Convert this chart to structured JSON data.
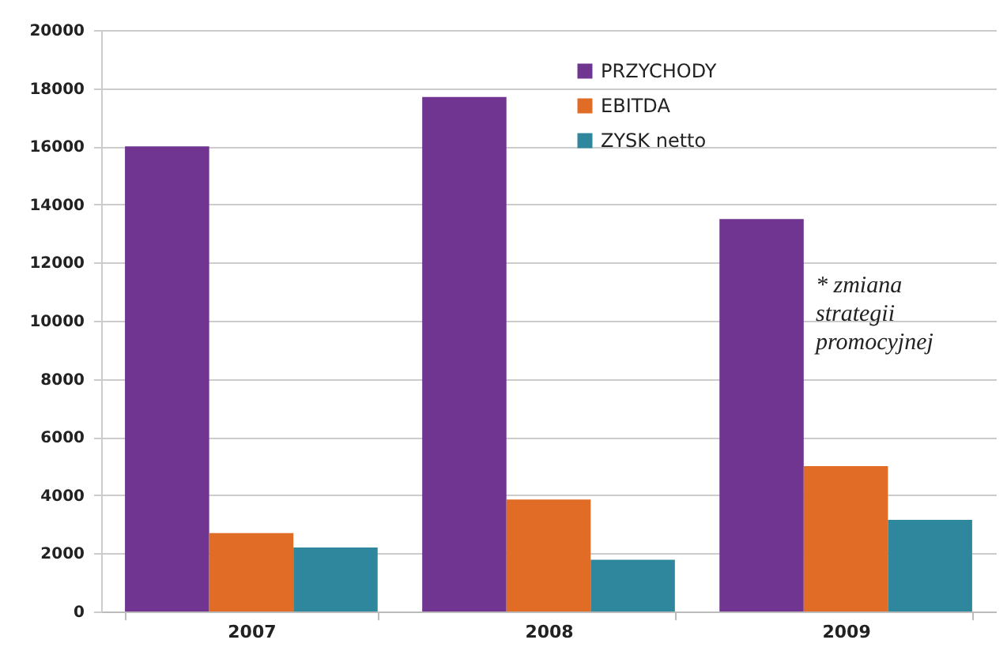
{
  "chart_data": {
    "type": "bar",
    "categories": [
      "2007",
      "2008",
      "2009"
    ],
    "series": [
      {
        "name": "PRZYCHODY",
        "color": "#6f3590",
        "values": [
          16000,
          17700,
          13500
        ]
      },
      {
        "name": "EBITDA",
        "color": "#e06c25",
        "values": [
          2700,
          3850,
          5000
        ]
      },
      {
        "name": "ZYSK netto",
        "color": "#2e879c",
        "values": [
          2200,
          1780,
          3150
        ]
      }
    ],
    "ylim": [
      0,
      20000
    ],
    "yticks": [
      0,
      2000,
      4000,
      6000,
      8000,
      10000,
      12000,
      14000,
      16000,
      18000,
      20000
    ],
    "grid": "y",
    "legend": "top right",
    "annotations": [
      "* zmiana strategii promocyjnej"
    ]
  }
}
